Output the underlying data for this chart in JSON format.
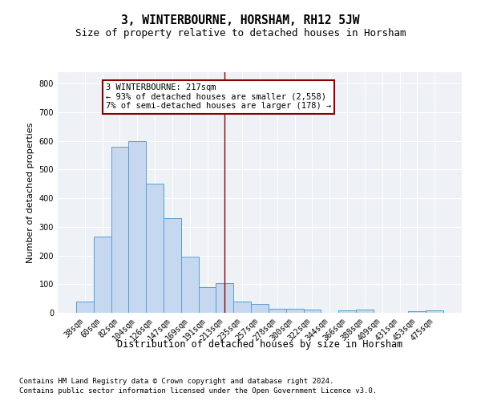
{
  "title": "3, WINTERBOURNE, HORSHAM, RH12 5JW",
  "subtitle": "Size of property relative to detached houses in Horsham",
  "xlabel": "Distribution of detached houses by size in Horsham",
  "ylabel": "Number of detached properties",
  "categories": [
    "38sqm",
    "60sqm",
    "82sqm",
    "104sqm",
    "126sqm",
    "147sqm",
    "169sqm",
    "191sqm",
    "213sqm",
    "235sqm",
    "257sqm",
    "278sqm",
    "300sqm",
    "322sqm",
    "344sqm",
    "366sqm",
    "388sqm",
    "409sqm",
    "431sqm",
    "453sqm",
    "475sqm"
  ],
  "values": [
    38,
    265,
    580,
    600,
    450,
    330,
    195,
    90,
    103,
    38,
    32,
    15,
    15,
    10,
    0,
    8,
    10,
    0,
    0,
    5,
    8
  ],
  "bar_color": "#c5d8f0",
  "bar_edge_color": "#5a9fd4",
  "vline_x": 8,
  "vline_color": "#8b0000",
  "annotation_text": "3 WINTERBOURNE: 217sqm\n← 93% of detached houses are smaller (2,558)\n7% of semi-detached houses are larger (178) →",
  "annotation_box_color": "#8b0000",
  "ylim": [
    0,
    840
  ],
  "yticks": [
    0,
    100,
    200,
    300,
    400,
    500,
    600,
    700,
    800
  ],
  "bg_color": "#eef2f7",
  "footer_line1": "Contains HM Land Registry data © Crown copyright and database right 2024.",
  "footer_line2": "Contains public sector information licensed under the Open Government Licence v3.0.",
  "title_fontsize": 10.5,
  "subtitle_fontsize": 9,
  "xlabel_fontsize": 8.5,
  "ylabel_fontsize": 8,
  "tick_fontsize": 7,
  "footer_fontsize": 6.5,
  "ann_fontsize": 7.5
}
